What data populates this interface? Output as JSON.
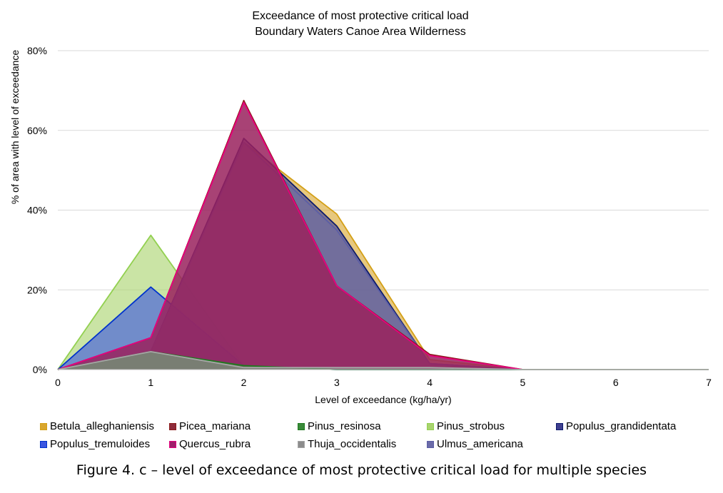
{
  "caption": "Figure 4. c – level of exceedance of most protective critical load for multiple species",
  "chart_data": {
    "type": "area",
    "title": "Exceedance of most protective critical load",
    "subtitle": "Boundary Waters Canoe Area Wilderness",
    "xlabel": "Level of exceedance (kg/ha/yr)",
    "ylabel": "% of area with level of exceedance",
    "xlim": [
      0,
      7
    ],
    "ylim": [
      0,
      80
    ],
    "x_ticks": [
      "0",
      "1",
      "2",
      "3",
      "4",
      "5",
      "6",
      "7"
    ],
    "y_ticks": [
      "0%",
      "20%",
      "40%",
      "60%",
      "80%"
    ],
    "grid": true,
    "legend_position": "bottom",
    "series": [
      {
        "name": "Betula_alleghaniensis",
        "color": "#D4A017",
        "fill": "#D9A62E",
        "x": [
          0,
          1,
          2,
          3,
          4,
          5,
          6,
          7
        ],
        "values": [
          0,
          4.5,
          57,
          39,
          2.5,
          0,
          0,
          0
        ]
      },
      {
        "name": "Pinus_strobus",
        "color": "#92D050",
        "fill": "#A9D46E",
        "x": [
          0,
          1,
          2,
          3,
          4,
          5,
          6,
          7
        ],
        "values": [
          0,
          33.7,
          0.8,
          0,
          0,
          0,
          0,
          0
        ]
      },
      {
        "name": "Populus_tremuloides",
        "color": "#0033CC",
        "fill": "#3A55E0",
        "x": [
          0,
          1,
          2,
          3,
          4,
          5,
          6,
          7
        ],
        "values": [
          0,
          20.7,
          1,
          0,
          0,
          0,
          0,
          0
        ]
      },
      {
        "name": "Populus_grandidentata",
        "color": "#0B1A6E",
        "fill": "#3F3F8F",
        "x": [
          0,
          1,
          2,
          3,
          4,
          5,
          6,
          7
        ],
        "values": [
          0,
          4.5,
          58,
          36,
          1.5,
          0,
          0,
          0
        ]
      },
      {
        "name": "Ulmus_americana",
        "color": "#5B5EA6",
        "fill": "#6B6BA8",
        "x": [
          0,
          1,
          2,
          3,
          4,
          5,
          6,
          7
        ],
        "values": [
          0,
          4.5,
          57,
          35,
          1.5,
          0,
          0,
          0
        ]
      },
      {
        "name": "Picea_mariana",
        "color": "#8B1A1A",
        "fill": "#8E2B3B",
        "x": [
          0,
          1,
          2,
          3,
          4,
          5,
          6,
          7
        ],
        "values": [
          0,
          8,
          67.5,
          21,
          3.8,
          0,
          0,
          0
        ]
      },
      {
        "name": "Quercus_rubra",
        "color": "#E6007E",
        "fill": "#9E1F6A",
        "x": [
          0,
          1,
          2,
          3,
          4,
          5,
          6,
          7
        ],
        "values": [
          0,
          8,
          67,
          21,
          3.5,
          0,
          0,
          0
        ]
      },
      {
        "name": "Pinus_resinosa",
        "color": "#1E7A1E",
        "fill": "#3A8A3A",
        "x": [
          0,
          1,
          2,
          3,
          4,
          5,
          6,
          7
        ],
        "values": [
          0,
          4.5,
          1,
          0,
          0,
          0,
          0,
          0
        ]
      },
      {
        "name": "Thuja_occidentalis",
        "color": "#A6A6A6",
        "fill": "#8C8C8C",
        "x": [
          0,
          1,
          2,
          3,
          4,
          5,
          6,
          7
        ],
        "values": [
          0,
          4.5,
          0.5,
          0.5,
          0.5,
          0,
          0,
          0
        ]
      }
    ],
    "legend_order": [
      "Betula_alleghaniensis",
      "Picea_mariana",
      "Pinus_resinosa",
      "Pinus_strobus",
      "Populus_grandidentata",
      "Populus_tremuloides",
      "Quercus_rubra",
      "Thuja_occidentalis",
      "Ulmus_americana"
    ]
  }
}
